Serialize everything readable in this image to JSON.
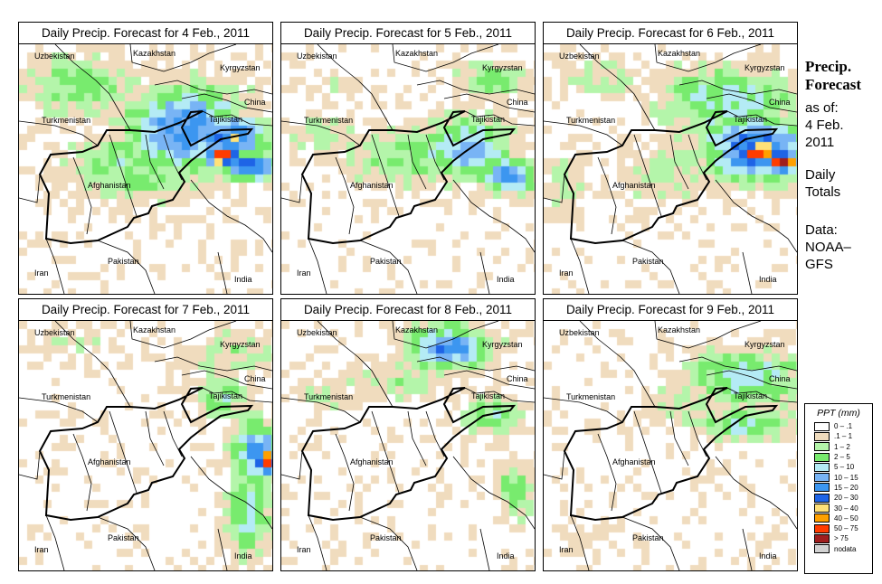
{
  "panels": [
    {
      "title": "Daily Precip. Forecast for  4 Feb., 2011"
    },
    {
      "title": "Daily Precip. Forecast for  5 Feb., 2011"
    },
    {
      "title": "Daily Precip. Forecast for  6 Feb., 2011"
    },
    {
      "title": "Daily Precip. Forecast for  7 Feb., 2011"
    },
    {
      "title": "Daily Precip. Forecast for  8 Feb., 2011"
    },
    {
      "title": "Daily Precip. Forecast for  9 Feb., 2011"
    }
  ],
  "countries": {
    "uzbekistan": "Uzbekistan",
    "kazakhstan": "Kazakhstan",
    "kyrgyzstan": "Kyrgyzstan",
    "china": "China",
    "turkmenistan": "Turkmenistan",
    "tajikistan": "Tajikistan",
    "afghanistan": "Afghanistan",
    "pakistan": "Pakistan",
    "iran": "Iran",
    "india": "India"
  },
  "side": {
    "title1": "Precip.",
    "title2": "Forecast",
    "asof": "as of:",
    "date1": "4 Feb.",
    "date2": "2011",
    "totals1": "Daily",
    "totals2": "Totals",
    "data1": "Data:",
    "data2": "NOAA–",
    "data3": "GFS"
  },
  "legend": {
    "title": "PPT (mm)",
    "items": [
      {
        "label": "0 – .1",
        "color": "#ffffff"
      },
      {
        "label": ".1 – 1",
        "color": "#f0dcbe"
      },
      {
        "label": "1 – 2",
        "color": "#b4f5aa"
      },
      {
        "label": "2 – 5",
        "color": "#78eb6e"
      },
      {
        "label": "5 – 10",
        "color": "#b4ebf5"
      },
      {
        "label": "10 – 15",
        "color": "#78b4f5"
      },
      {
        "label": "15 – 20",
        "color": "#3c96f0"
      },
      {
        "label": "20 – 30",
        "color": "#1e64e6"
      },
      {
        "label": "30 – 40",
        "color": "#ffe178"
      },
      {
        "label": "40 – 50",
        "color": "#ffa000"
      },
      {
        "label": "50 – 75",
        "color": "#ff3c00"
      },
      {
        "label": "> 75",
        "color": "#a01e1e"
      },
      {
        "label": "nodata",
        "color": "#d2d2d2"
      }
    ]
  }
}
